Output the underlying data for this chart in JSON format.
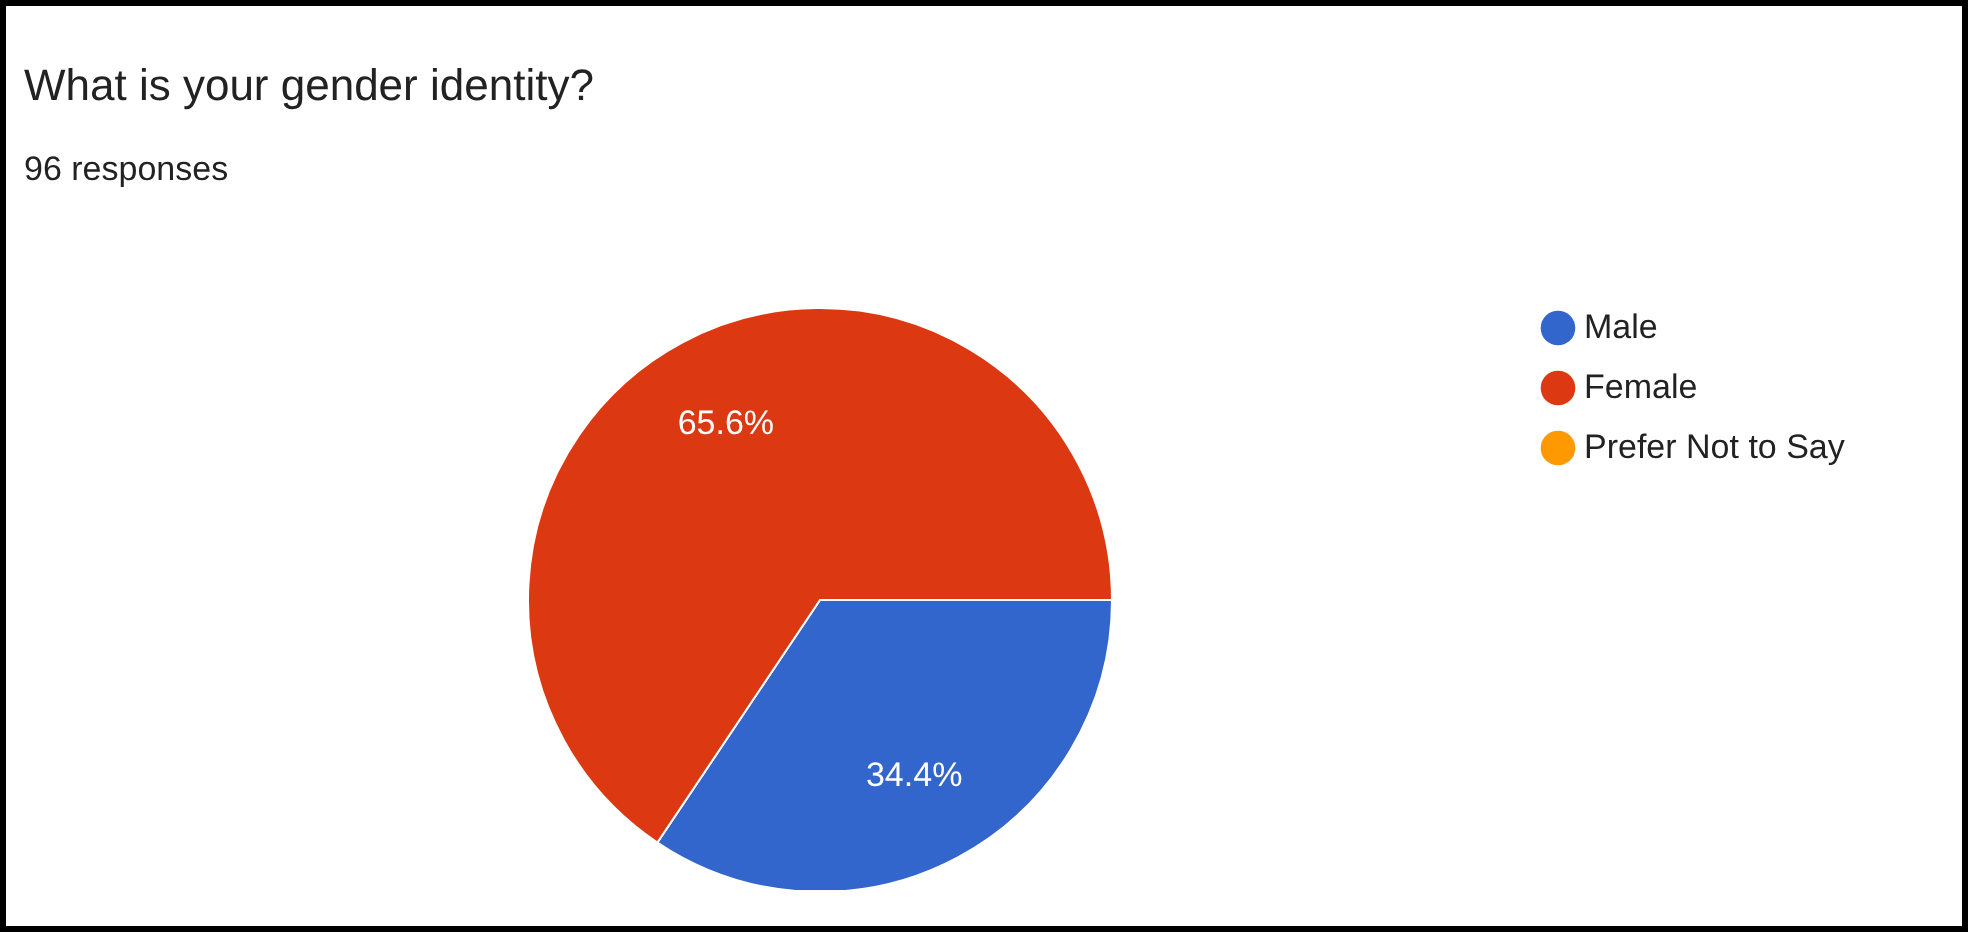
{
  "chart_data": {
    "type": "pie",
    "title": "What is your gender identity?",
    "subtitle": "96 responses",
    "categories": [
      "Male",
      "Female",
      "Prefer Not to Say"
    ],
    "values": [
      34.4,
      65.6,
      0
    ],
    "colors": [
      "#3366cc",
      "#dc3912",
      "#ff9900"
    ],
    "value_labels": [
      "34.4%",
      "65.6%",
      null
    ],
    "legend": "right"
  }
}
